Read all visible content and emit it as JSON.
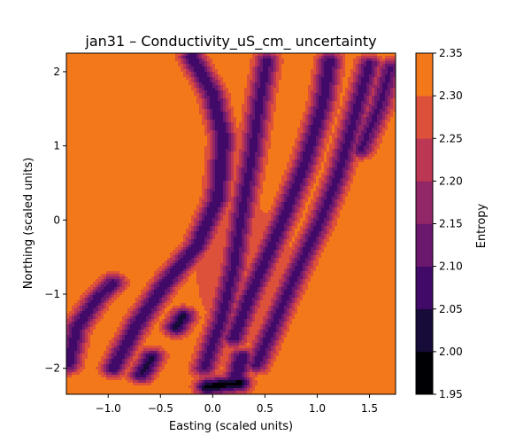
{
  "chart_data": {
    "type": "heatmap",
    "subtype": "filled-contour",
    "title": "jan31 – Conductivity_uS_cm_ uncertainty",
    "xlabel": "Easting (scaled units)",
    "ylabel": "Northing (scaled units)",
    "xlim": [
      -1.4,
      1.75
    ],
    "ylim": [
      -2.35,
      2.25
    ],
    "xticks": [
      -1.0,
      -0.5,
      0.0,
      0.5,
      1.0,
      1.5
    ],
    "xtick_labels": [
      "−1.0",
      "−0.5",
      "0.0",
      "0.5",
      "1.0",
      "1.5"
    ],
    "yticks": [
      2,
      1,
      0,
      -1,
      -2
    ],
    "ytick_labels": [
      "2",
      "1",
      "0",
      "−1",
      "−2"
    ],
    "colorbar": {
      "label": "Entropy",
      "colormap": "inferno",
      "levels": [
        1.95,
        2.0,
        2.05,
        2.1,
        2.15,
        2.2,
        2.25,
        2.3,
        2.35
      ],
      "tick_labels": [
        "1.95",
        "2.00",
        "2.05",
        "2.10",
        "2.15",
        "2.20",
        "2.25",
        "2.30",
        "2.35"
      ],
      "band_colors": [
        "#000004",
        "#160b39",
        "#420a68",
        "#6a176e",
        "#932667",
        "#bc3754",
        "#dd513a",
        "#f37819",
        "#fca50a",
        "#f6d746",
        "#f0f291"
      ]
    },
    "background_level": 2.35,
    "background_color": "#f0f291",
    "ridges": [
      {
        "points": [
          [
            -1.38,
            -1.95
          ],
          [
            -1.3,
            -1.45
          ],
          [
            -1.1,
            -1.05
          ],
          [
            -0.95,
            -0.85
          ]
        ],
        "min": 2.07
      },
      {
        "points": [
          [
            -0.95,
            -2.0
          ],
          [
            -0.72,
            -1.4
          ],
          [
            -0.45,
            -0.85
          ],
          [
            -0.15,
            -0.35
          ],
          [
            0.05,
            0.3
          ],
          [
            0.1,
            1.1
          ],
          [
            0.0,
            1.7
          ],
          [
            -0.2,
            2.2
          ]
        ],
        "min": 2.06
      },
      {
        "points": [
          [
            -0.68,
            -2.08
          ],
          [
            -0.58,
            -1.85
          ]
        ],
        "min": 2.04
      },
      {
        "points": [
          [
            -0.35,
            -1.45
          ],
          [
            -0.28,
            -1.3
          ]
        ],
        "min": 2.03
      },
      {
        "points": [
          [
            -0.08,
            -2.0
          ],
          [
            0.08,
            -1.35
          ],
          [
            0.2,
            -0.65
          ],
          [
            0.28,
            0.1
          ],
          [
            0.38,
            0.9
          ],
          [
            0.45,
            1.6
          ],
          [
            0.52,
            2.15
          ]
        ],
        "min": 2.08
      },
      {
        "points": [
          [
            -0.05,
            -2.25
          ],
          [
            0.25,
            -2.2
          ]
        ],
        "min": 1.98
      },
      {
        "points": [
          [
            0.2,
            -1.6
          ],
          [
            0.35,
            -1.05
          ],
          [
            0.52,
            -0.5
          ],
          [
            0.7,
            0.1
          ],
          [
            0.88,
            0.75
          ],
          [
            1.05,
            1.55
          ],
          [
            1.12,
            2.15
          ]
        ],
        "min": 2.07
      },
      {
        "points": [
          [
            0.22,
            -2.15
          ],
          [
            0.28,
            -1.85
          ]
        ],
        "min": 2.05
      },
      {
        "points": [
          [
            0.42,
            -1.95
          ],
          [
            0.62,
            -1.3
          ],
          [
            0.82,
            -0.65
          ],
          [
            1.02,
            -0.05
          ],
          [
            1.2,
            0.6
          ],
          [
            1.35,
            1.35
          ],
          [
            1.5,
            2.1
          ]
        ],
        "min": 2.08
      },
      {
        "points": [
          [
            1.7,
            2.05
          ],
          [
            1.6,
            1.55
          ],
          [
            1.42,
            0.95
          ]
        ],
        "min": 2.09
      }
    ],
    "broad_fields": [
      {
        "center": [
          0.3,
          -0.7
        ],
        "spread": [
          0.55,
          1.1
        ],
        "level": 2.28
      },
      {
        "center": [
          -0.1,
          1.4
        ],
        "spread": [
          0.35,
          0.9
        ],
        "level": 2.3
      }
    ]
  }
}
